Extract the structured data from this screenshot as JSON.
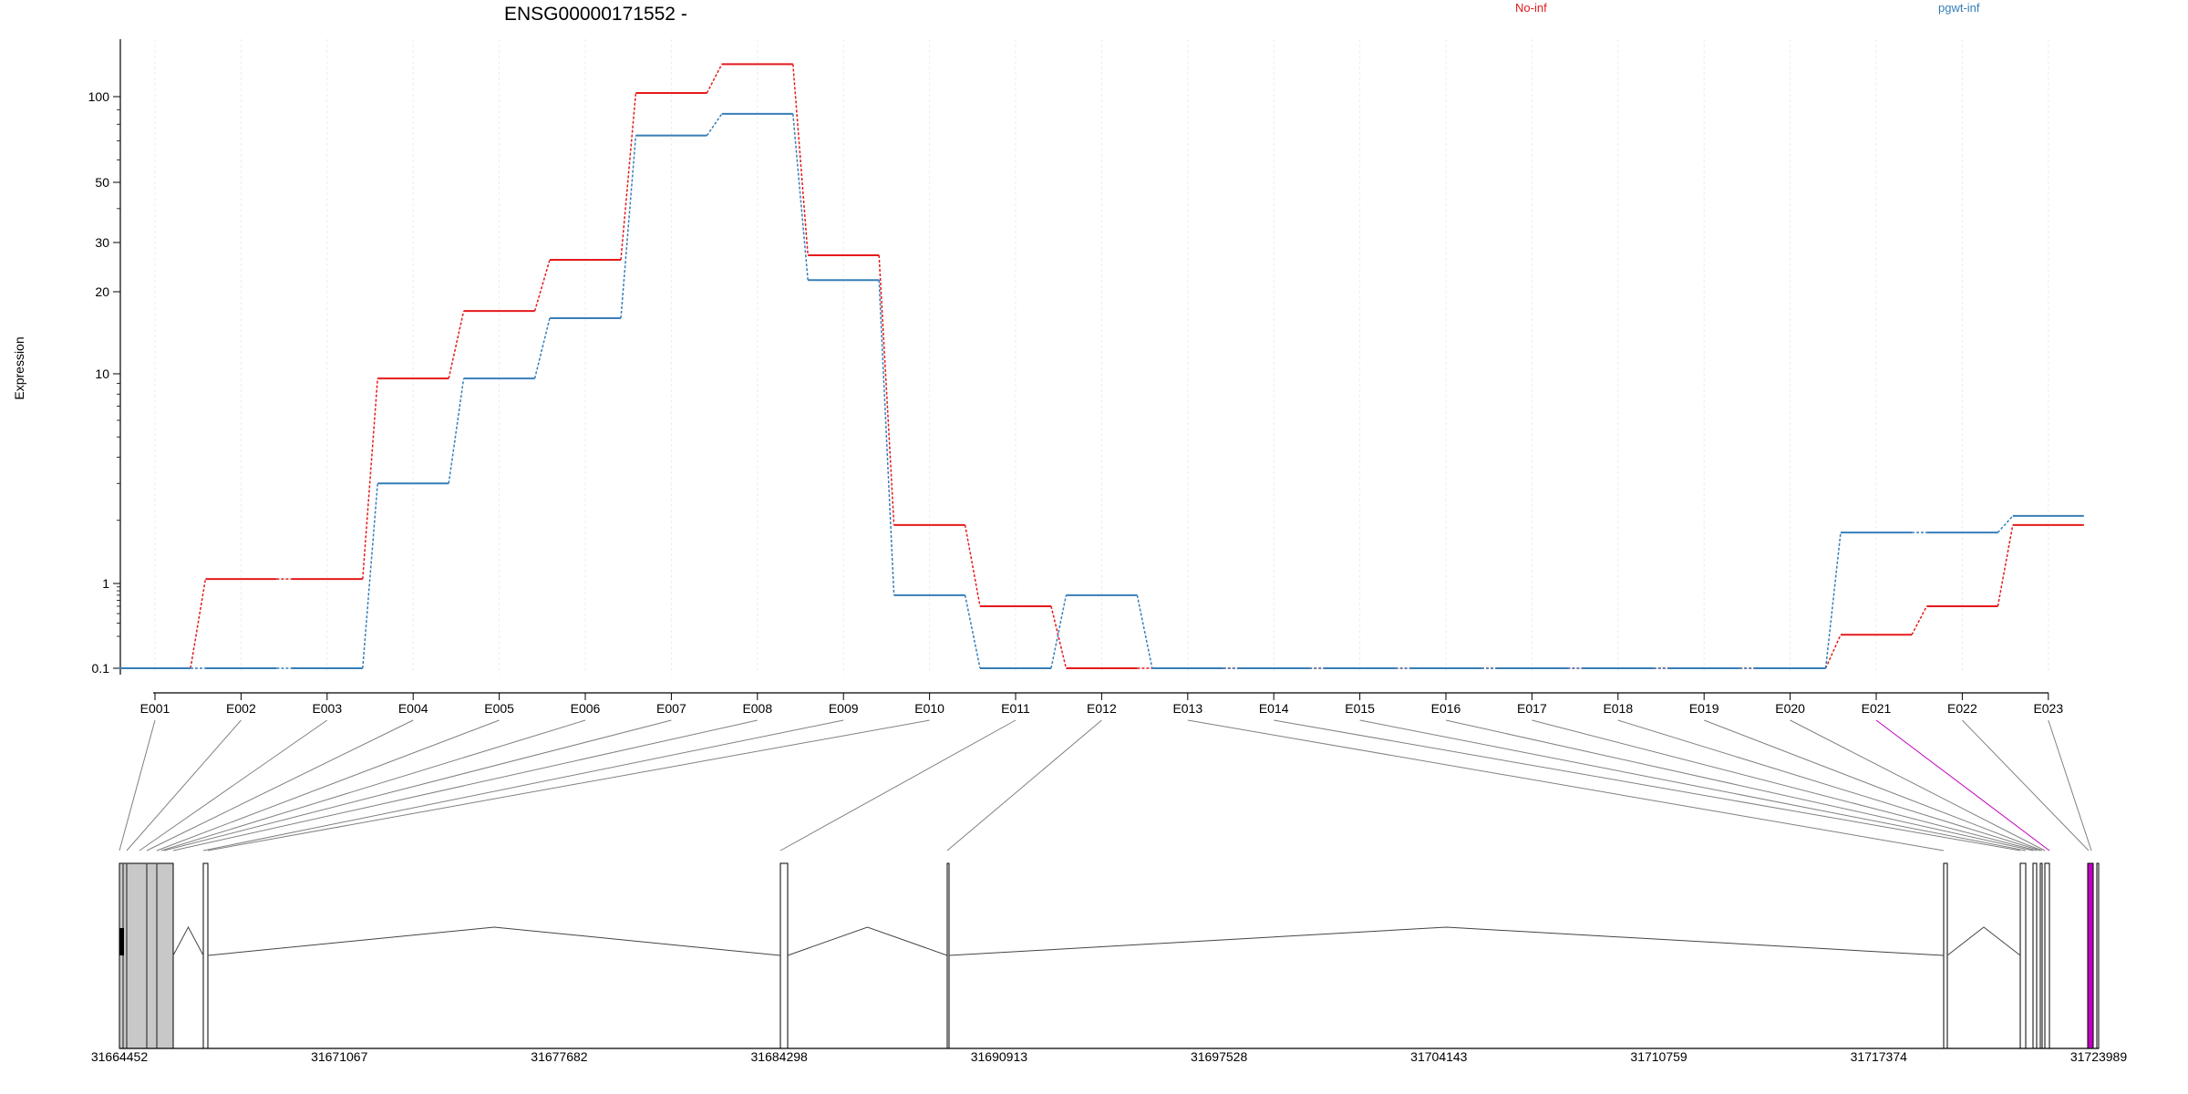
{
  "chart_data": {
    "type": "line",
    "title": "ENSG00000171552 -",
    "ylabel": "Expression",
    "y_scale": "log",
    "y_ticks": [
      0.1,
      1,
      10,
      20,
      30,
      50,
      100
    ],
    "y_tick_labels": [
      "0.1",
      "1",
      "10",
      "20",
      "30",
      "50",
      "100"
    ],
    "categories": [
      "E001",
      "E002",
      "E003",
      "E004",
      "E005",
      "E006",
      "E007",
      "E008",
      "E009",
      "E010",
      "E011",
      "E012",
      "E013",
      "E014",
      "E015",
      "E016",
      "E017",
      "E018",
      "E019",
      "E020",
      "E021",
      "E022",
      "E023"
    ],
    "series": [
      {
        "name": "No-inf",
        "color": "#e41a1c",
        "values": [
          0.08,
          1.05,
          1.05,
          9.5,
          17,
          26,
          103,
          130,
          27,
          1.9,
          0.5,
          0.08,
          0.08,
          0.08,
          0.08,
          0.08,
          0.08,
          0.08,
          0.08,
          0.08,
          0.21,
          0.5,
          1.9
        ]
      },
      {
        "name": "pgwt-inf",
        "color": "#377eb8",
        "values": [
          0.08,
          0.08,
          0.08,
          3.0,
          9.5,
          16,
          73,
          87,
          22,
          0.7,
          0.08,
          0.7,
          0.08,
          0.08,
          0.08,
          0.08,
          0.08,
          0.08,
          0.08,
          0.08,
          1.75,
          1.75,
          2.1
        ]
      }
    ],
    "legend": {
      "placement": "top",
      "entries": [
        "No-inf",
        "pgwt-inf"
      ]
    },
    "gene_model": {
      "genomic_ticks": [
        "31664452",
        "31671067",
        "31677682",
        "31684298",
        "31690913",
        "31697528",
        "31704143",
        "31710759",
        "31717374",
        "31723989"
      ],
      "highlight_exon": "E021",
      "highlight_color": "#c000c0"
    }
  }
}
